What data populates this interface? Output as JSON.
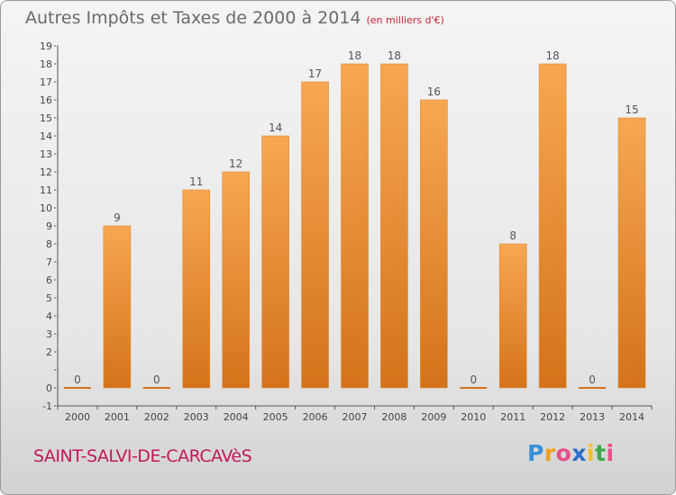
{
  "header": {
    "title": "Autres Impôts et Taxes de 2000 à 2014",
    "subtitle": "(en milliers d'€)"
  },
  "footer": {
    "commune": "SAINT-SALVI-DE-CARCAVèS",
    "logo_letters": [
      "P",
      "r",
      "o",
      "x",
      "i",
      "t",
      "i"
    ],
    "logo_colors": [
      "#3a8fd9",
      "#f0a020",
      "#e84e8a",
      "#2a6fc9",
      "#f0c020",
      "#3aa84a",
      "#e84e8a"
    ]
  },
  "colors": {
    "bar_light": "#f7a752",
    "bar_dark": "#d4731a",
    "axis": "#555555",
    "grid": "#bbbbbb"
  },
  "chart_data": {
    "type": "bar",
    "title": "Autres Impôts et Taxes de 2000 à 2014",
    "subtitle": "(en milliers d'€)",
    "categories": [
      "2000",
      "2001",
      "2002",
      "2003",
      "2004",
      "2005",
      "2006",
      "2007",
      "2008",
      "2009",
      "2010",
      "2011",
      "2012",
      "2013",
      "2014"
    ],
    "values": [
      0,
      9,
      0,
      11,
      12,
      14,
      17,
      18,
      18,
      16,
      0,
      8,
      18,
      0,
      15
    ],
    "ylim": [
      -1,
      19
    ],
    "yticks": [
      -1,
      0,
      1,
      2,
      3,
      4,
      5,
      6,
      7,
      8,
      9,
      10,
      11,
      12,
      13,
      14,
      15,
      16,
      17,
      18,
      19
    ],
    "ytick_labels": [
      "-1",
      "0",
      "",
      "2",
      "3",
      "4",
      "5",
      "6",
      "7",
      "8",
      "9",
      "10",
      "11",
      "12",
      "13",
      "14",
      "15",
      "16",
      "17",
      "18",
      "19"
    ],
    "grid": false,
    "xlabel": "",
    "ylabel": ""
  }
}
